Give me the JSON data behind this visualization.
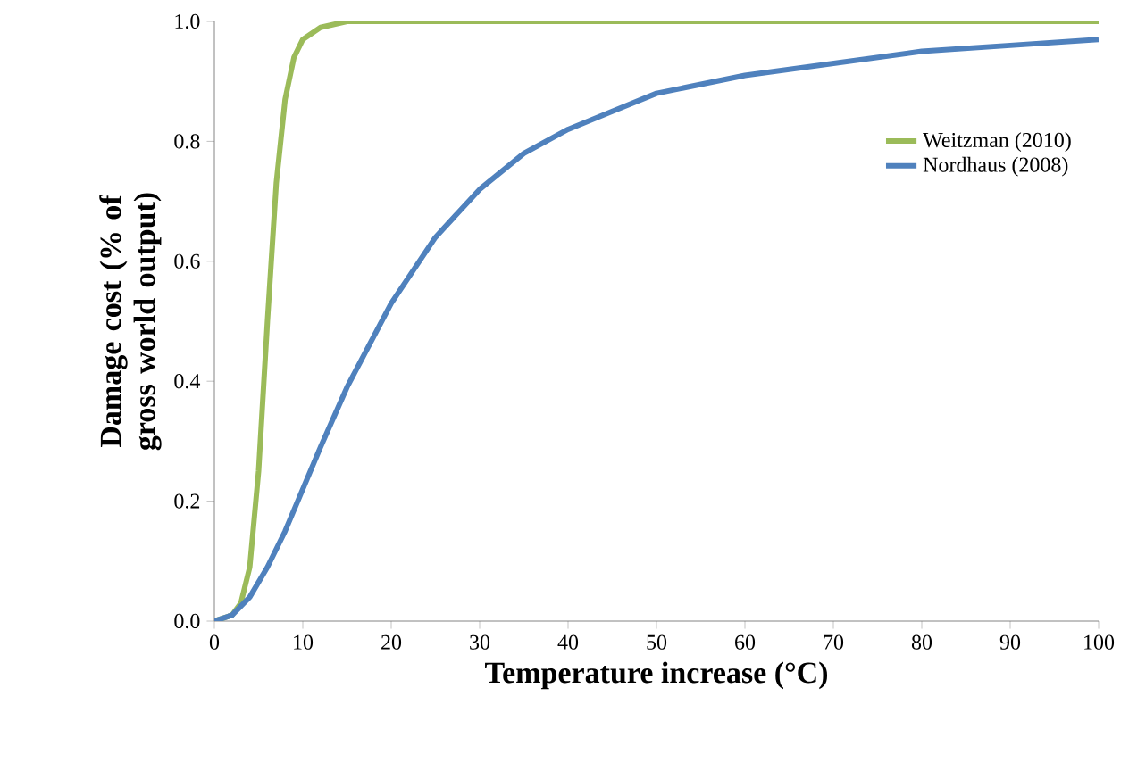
{
  "chart_data": {
    "type": "line",
    "xlabel": "Temperature increase (°C)",
    "ylabel": "Damage cost (% of gross world output)",
    "xlim": [
      0,
      100
    ],
    "ylim": [
      0,
      1.0
    ],
    "xticks": [
      0,
      10,
      20,
      30,
      40,
      50,
      60,
      70,
      80,
      90,
      100
    ],
    "yticks": [
      {
        "value": 0,
        "label": "0.0"
      },
      {
        "value": 0.2,
        "label": "0.2"
      },
      {
        "value": 0.4,
        "label": "0.4"
      },
      {
        "value": 0.6,
        "label": "0.6"
      },
      {
        "value": 0.8,
        "label": "0.8"
      },
      {
        "value": 1.0,
        "label": "1.0"
      }
    ],
    "grid": false,
    "legend": "right",
    "marker": "none",
    "line_style": "solid",
    "series": [
      {
        "name": "Weitzman (2010)",
        "color": "#9bbb59",
        "x": [
          0,
          2,
          3,
          4,
          5,
          6,
          7,
          8,
          9,
          10,
          12,
          15,
          20,
          30,
          40,
          50,
          60,
          70,
          80,
          90,
          100
        ],
        "values": [
          0,
          0.01,
          0.03,
          0.09,
          0.25,
          0.5,
          0.73,
          0.87,
          0.94,
          0.97,
          0.99,
          1.0,
          1.0,
          1.0,
          1.0,
          1.0,
          1.0,
          1.0,
          1.0,
          1.0,
          1.0
        ]
      },
      {
        "name": "Nordhaus (2008)",
        "color": "#4f81bd",
        "x": [
          0,
          2,
          4,
          6,
          8,
          10,
          12,
          15,
          20,
          25,
          30,
          35,
          40,
          45,
          50,
          60,
          70,
          80,
          90,
          100
        ],
        "values": [
          0,
          0.01,
          0.04,
          0.09,
          0.15,
          0.22,
          0.29,
          0.39,
          0.53,
          0.64,
          0.72,
          0.78,
          0.82,
          0.85,
          0.88,
          0.91,
          0.93,
          0.95,
          0.96,
          0.97
        ]
      }
    ]
  }
}
